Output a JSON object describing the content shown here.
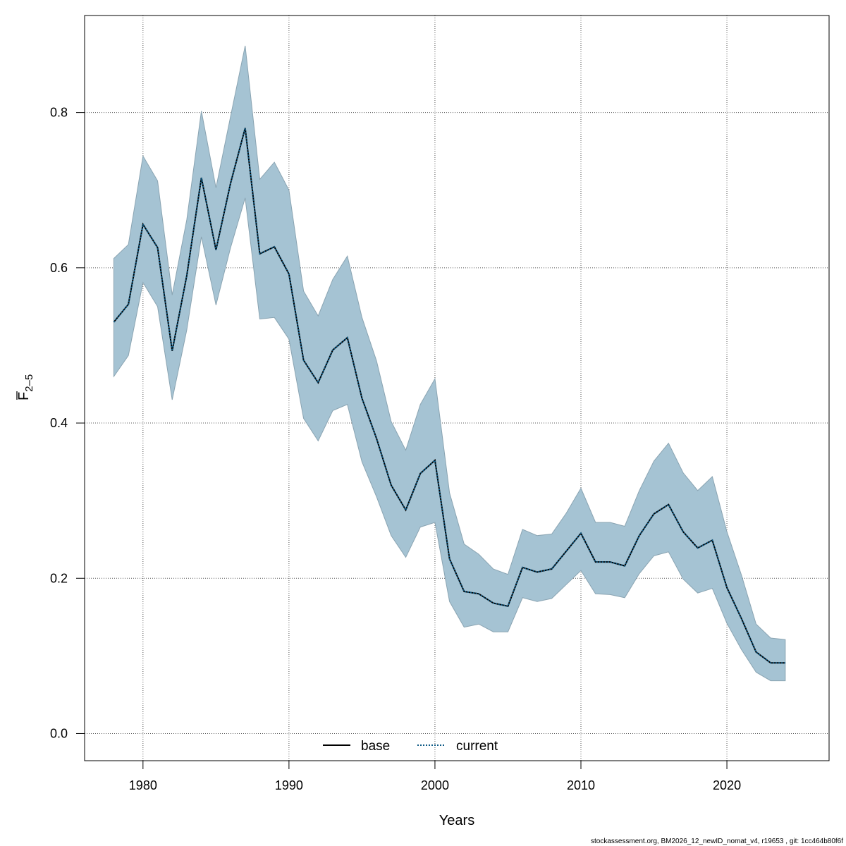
{
  "chart_data": {
    "type": "area",
    "xlabel": "Years",
    "ylabel": {
      "main": "F",
      "subscript": "2–5"
    },
    "xlim": [
      1976,
      2027
    ],
    "ylim": [
      -0.035,
      0.925
    ],
    "xticks": [
      1980,
      1990,
      2000,
      2010,
      2020
    ],
    "yticks": [
      0.0,
      0.2,
      0.4,
      0.6,
      0.8
    ],
    "ytick_labels": [
      "0.0",
      "0.2",
      "0.4",
      "0.6",
      "0.8"
    ],
    "grid": true,
    "legend_position": "bottom",
    "colors": {
      "band_fill": "#a5c3d3",
      "band_edge": "#8aa4b2",
      "base_line": "#000000",
      "current_line": "#0f5b86"
    },
    "x": [
      1978,
      1979,
      1980,
      1981,
      1982,
      1983,
      1984,
      1985,
      1986,
      1987,
      1988,
      1989,
      1990,
      1991,
      1992,
      1993,
      1994,
      1995,
      1996,
      1997,
      1998,
      1999,
      2000,
      2001,
      2002,
      2003,
      2004,
      2005,
      2006,
      2007,
      2008,
      2009,
      2010,
      2011,
      2012,
      2013,
      2014,
      2015,
      2016,
      2017,
      2018,
      2019,
      2020,
      2021,
      2022,
      2023,
      2024
    ],
    "band": {
      "upper": [
        0.612,
        0.63,
        0.744,
        0.712,
        0.565,
        0.662,
        0.802,
        0.703,
        0.795,
        0.886,
        0.714,
        0.736,
        0.7,
        0.57,
        0.538,
        0.585,
        0.615,
        0.536,
        0.48,
        0.402,
        0.365,
        0.424,
        0.457,
        0.31,
        0.244,
        0.231,
        0.212,
        0.205,
        0.263,
        0.255,
        0.257,
        0.284,
        0.316,
        0.272,
        0.272,
        0.267,
        0.313,
        0.351,
        0.374,
        0.336,
        0.313,
        0.331,
        0.26,
        0.204,
        0.141,
        0.123,
        0.121
      ],
      "lower": [
        0.46,
        0.487,
        0.581,
        0.55,
        0.43,
        0.52,
        0.64,
        0.552,
        0.626,
        0.69,
        0.534,
        0.536,
        0.508,
        0.406,
        0.377,
        0.416,
        0.424,
        0.35,
        0.305,
        0.255,
        0.227,
        0.266,
        0.272,
        0.17,
        0.137,
        0.141,
        0.131,
        0.131,
        0.175,
        0.17,
        0.174,
        0.192,
        0.21,
        0.18,
        0.179,
        0.175,
        0.206,
        0.229,
        0.234,
        0.199,
        0.181,
        0.187,
        0.142,
        0.108,
        0.079,
        0.068,
        0.068
      ]
    },
    "series": [
      {
        "name": "base",
        "style": "solid",
        "values": [
          0.53,
          0.553,
          0.656,
          0.626,
          0.493,
          0.59,
          0.716,
          0.623,
          0.709,
          0.78,
          0.618,
          0.627,
          0.592,
          0.481,
          0.452,
          0.494,
          0.51,
          0.432,
          0.38,
          0.32,
          0.288,
          0.335,
          0.352,
          0.225,
          0.183,
          0.18,
          0.168,
          0.164,
          0.214,
          0.208,
          0.212,
          0.235,
          0.258,
          0.221,
          0.221,
          0.216,
          0.255,
          0.283,
          0.295,
          0.26,
          0.239,
          0.249,
          0.188,
          0.148,
          0.105,
          0.091,
          0.091
        ]
      },
      {
        "name": "current",
        "style": "dotted",
        "values": [
          0.53,
          0.553,
          0.656,
          0.626,
          0.493,
          0.59,
          0.716,
          0.623,
          0.709,
          0.78,
          0.618,
          0.627,
          0.592,
          0.481,
          0.452,
          0.494,
          0.51,
          0.432,
          0.38,
          0.32,
          0.288,
          0.335,
          0.352,
          0.225,
          0.183,
          0.18,
          0.168,
          0.164,
          0.214,
          0.208,
          0.212,
          0.235,
          0.258,
          0.221,
          0.221,
          0.216,
          0.255,
          0.283,
          0.295,
          0.26,
          0.239,
          0.249,
          0.188,
          0.148,
          0.105,
          0.091,
          0.091
        ]
      }
    ]
  },
  "footer": "stockassessment.org, BM2026_12_newID_nomat_v4, r19653 , git: 1cc464b80f6f"
}
